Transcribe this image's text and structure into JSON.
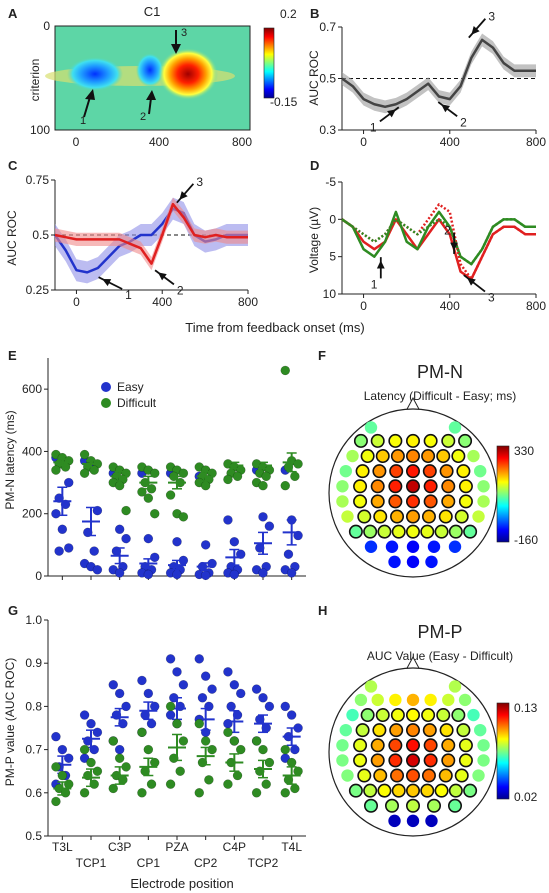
{
  "panel_letters": {
    "a": "A",
    "b": "B",
    "c": "C",
    "d": "D",
    "e": "E",
    "f": "F",
    "g": "G",
    "h": "H"
  },
  "colors": {
    "blue": "#2233cc",
    "red": "#e02020",
    "green": "#2e8b22",
    "grey": "#444444",
    "band_grey": "#999999",
    "band_blue": "#8f8fe8",
    "band_red": "#f08a8a"
  },
  "shared_xlabel": "Time from feedback onset (ms)",
  "chart_data": [
    {
      "id": "A",
      "type": "heatmap",
      "title": "C1",
      "ylabel": "criterion",
      "x_ticks": [
        "0",
        "400",
        "800"
      ],
      "y_ticks": [
        "0",
        "100"
      ],
      "colorbar": {
        "max_label": "0.2",
        "min_label": "-0.15",
        "range": [
          -0.15,
          0.2
        ]
      },
      "arrows": [
        "1",
        "2",
        "3"
      ]
    },
    {
      "id": "B",
      "type": "line",
      "ylabel": "AUC ROC",
      "ylim": [
        0.3,
        0.7
      ],
      "xlim": [
        -100,
        800
      ],
      "y_ticks": [
        "0.7",
        "0.5",
        "0.3"
      ],
      "x_ticks": [
        "0",
        "400",
        "800"
      ],
      "x": [
        -100,
        -50,
        0,
        50,
        100,
        150,
        200,
        250,
        300,
        350,
        400,
        450,
        500,
        550,
        600,
        650,
        700,
        750,
        800
      ],
      "series": [
        {
          "values": [
            0.5,
            0.47,
            0.42,
            0.4,
            0.39,
            0.4,
            0.42,
            0.45,
            0.48,
            0.43,
            0.42,
            0.47,
            0.58,
            0.65,
            0.62,
            0.56,
            0.53,
            0.53,
            0.53
          ],
          "sem": 0.025
        }
      ],
      "reference": 0.5,
      "arrows": [
        "1",
        "2",
        "3"
      ]
    },
    {
      "id": "C",
      "type": "line",
      "ylabel": "AUC ROC",
      "ylim": [
        0.25,
        0.75
      ],
      "xlim": [
        -100,
        800
      ],
      "y_ticks": [
        "0.75",
        "0.5",
        "0.25"
      ],
      "x_ticks": [
        "0",
        "400",
        "800"
      ],
      "x": [
        -100,
        -50,
        0,
        50,
        100,
        150,
        200,
        250,
        300,
        350,
        400,
        450,
        500,
        550,
        600,
        650,
        700,
        750,
        800
      ],
      "series": [
        {
          "color_key": "blue",
          "values": [
            0.5,
            0.43,
            0.34,
            0.33,
            0.35,
            0.4,
            0.45,
            0.47,
            0.5,
            0.5,
            0.55,
            0.62,
            0.6,
            0.5,
            0.47,
            0.48,
            0.5,
            0.5,
            0.5
          ],
          "sem": 0.05
        },
        {
          "color_key": "red",
          "values": [
            0.5,
            0.49,
            0.48,
            0.48,
            0.48,
            0.48,
            0.48,
            0.46,
            0.44,
            0.37,
            0.5,
            0.64,
            0.58,
            0.5,
            0.49,
            0.5,
            0.49,
            0.49,
            0.49
          ],
          "sem": 0.03
        }
      ],
      "reference": 0.5,
      "arrows": [
        "1",
        "2",
        "3"
      ]
    },
    {
      "id": "D",
      "type": "line",
      "ylabel": "Voltage (µV)",
      "ylim": [
        -5,
        10
      ],
      "y_inverted": true,
      "xlim": [
        -100,
        800
      ],
      "y_ticks": [
        "-5",
        "0",
        "5",
        "10"
      ],
      "x_ticks": [
        "0",
        "400",
        "800"
      ],
      "x": [
        -100,
        -50,
        0,
        50,
        100,
        150,
        200,
        250,
        300,
        350,
        400,
        450,
        500,
        550,
        600,
        650,
        700,
        750,
        800
      ],
      "series": [
        {
          "color_key": "red",
          "style": "solid",
          "values": [
            0,
            1,
            3,
            4,
            3,
            0,
            2,
            4,
            2,
            0,
            2,
            7,
            8,
            5,
            2,
            1,
            1,
            2,
            2
          ]
        },
        {
          "color_key": "green",
          "style": "solid",
          "values": [
            0,
            1,
            4,
            5,
            3,
            -1,
            3,
            4,
            1,
            -1,
            1,
            5,
            6,
            4,
            1,
            0,
            0,
            1,
            1
          ]
        },
        {
          "color_key": "red",
          "style": "dotted",
          "values": [
            0,
            1,
            2,
            3,
            2,
            0,
            1,
            2,
            0,
            -2,
            -1,
            6,
            8,
            5,
            2,
            1,
            1,
            2,
            2
          ]
        },
        {
          "color_key": "green",
          "style": "dotted",
          "values": [
            0,
            1,
            2,
            3,
            2,
            0,
            1,
            2,
            1,
            0,
            1,
            5,
            6,
            4,
            1,
            0,
            0,
            1,
            1
          ]
        }
      ],
      "arrows": [
        "1",
        "2",
        "3"
      ]
    },
    {
      "id": "E",
      "type": "scatter",
      "ylabel": "PM-N latency (ms)",
      "ylim": [
        0,
        700
      ],
      "y_ticks": [
        "0",
        "200",
        "400",
        "600"
      ],
      "categories": [
        "T3L",
        "TCP1",
        "C3P",
        "CP1",
        "PZA",
        "CP2",
        "C4P",
        "TCP2",
        "T4L"
      ],
      "series": [
        {
          "name": "Easy",
          "color_key": "blue",
          "points": [
            [
              380,
              360,
              300,
              250,
              230,
              200,
              150,
              90,
              80
            ],
            [
              370,
              350,
              210,
              140,
              80,
              40,
              30,
              20
            ],
            [
              330,
              150,
              120,
              80,
              30,
              20,
              10
            ],
            [
              330,
              120,
              60,
              30,
              20,
              10,
              5
            ],
            [
              330,
              110,
              50,
              30,
              20,
              10,
              5
            ],
            [
              320,
              100,
              40,
              30,
              10,
              5,
              2
            ],
            [
              180,
              110,
              70,
              30,
              20,
              10,
              5
            ],
            [
              340,
              190,
              160,
              90,
              30,
              20,
              10
            ],
            [
              340,
              180,
              130,
              70,
              30,
              20,
              10
            ]
          ],
          "mean": [
            240,
            175,
            65,
            40,
            35,
            30,
            60,
            105,
            140
          ],
          "sem": [
            45,
            45,
            25,
            15,
            15,
            12,
            25,
            35,
            40
          ]
        },
        {
          "name": "Difficult",
          "color_key": "green",
          "points": [
            [
              390,
              380,
              370,
              360,
              350,
              340
            ],
            [
              390,
              370,
              360,
              350,
              340,
              330
            ],
            [
              350,
              340,
              330,
              320,
              310,
              300,
              290,
              210
            ],
            [
              350,
              340,
              330,
              300,
              280,
              270,
              250,
              200
            ],
            [
              350,
              340,
              330,
              320,
              300,
              260,
              200,
              190
            ],
            [
              350,
              340,
              330,
              320,
              310,
              300,
              290
            ],
            [
              360,
              350,
              340,
              330,
              320,
              310
            ],
            [
              360,
              350,
              340,
              330,
              320,
              300,
              290
            ],
            [
              660,
              370,
              360,
              350,
              320,
              290
            ]
          ],
          "mean": [
            365,
            360,
            320,
            300,
            300,
            320,
            355,
            355,
            365
          ],
          "sem": [
            10,
            10,
            15,
            20,
            20,
            15,
            10,
            10,
            30
          ]
        }
      ]
    },
    {
      "id": "F",
      "type": "heatmap",
      "title": "PM-N",
      "subtitle": "Latency (Difficult - Easy; ms)",
      "colorbar": {
        "max_label": "330",
        "min_label": "-160",
        "range": [
          -160,
          330
        ]
      }
    },
    {
      "id": "G",
      "type": "scatter",
      "ylabel": "PM-P value (AUC ROC)",
      "xlabel": "Electrode position",
      "ylim": [
        0.5,
        1.0
      ],
      "y_ticks": [
        "0.5",
        "0.6",
        "0.7",
        "0.8",
        "0.9",
        "1.0"
      ],
      "categories": [
        "T3L",
        "TCP1",
        "C3P",
        "CP1",
        "PZA",
        "CP2",
        "C4P",
        "TCP2",
        "T4L"
      ],
      "series": [
        {
          "name": "Easy",
          "color_key": "blue",
          "points": [
            [
              0.73,
              0.7,
              0.68,
              0.66,
              0.64,
              0.62
            ],
            [
              0.78,
              0.76,
              0.74,
              0.72,
              0.7,
              0.68
            ],
            [
              0.85,
              0.83,
              0.8,
              0.78,
              0.76,
              0.72,
              0.7
            ],
            [
              0.86,
              0.83,
              0.8,
              0.78,
              0.76,
              0.74
            ],
            [
              0.91,
              0.88,
              0.85,
              0.82,
              0.8,
              0.78,
              0.76
            ],
            [
              0.91,
              0.87,
              0.84,
              0.82,
              0.8,
              0.77,
              0.74
            ],
            [
              0.88,
              0.85,
              0.83,
              0.8,
              0.78,
              0.76,
              0.72
            ],
            [
              0.84,
              0.82,
              0.8,
              0.77,
              0.75,
              0.72
            ],
            [
              0.8,
              0.78,
              0.75,
              0.73,
              0.7,
              0.68
            ]
          ],
          "mean": [
            0.665,
            0.725,
            0.775,
            0.79,
            0.795,
            0.77,
            0.765,
            0.76,
            0.73
          ],
          "sem": [
            0.02,
            0.02,
            0.02,
            0.02,
            0.025,
            0.025,
            0.025,
            0.02,
            0.02
          ]
        },
        {
          "name": "Difficult",
          "color_key": "green",
          "points": [
            [
              0.66,
              0.64,
              0.62,
              0.61,
              0.6,
              0.58
            ],
            [
              0.7,
              0.67,
              0.65,
              0.64,
              0.62,
              0.6
            ],
            [
              0.72,
              0.68,
              0.66,
              0.64,
              0.63,
              0.61
            ],
            [
              0.74,
              0.7,
              0.67,
              0.65,
              0.62,
              0.6
            ],
            [
              0.8,
              0.76,
              0.72,
              0.68,
              0.65,
              0.62
            ],
            [
              0.76,
              0.72,
              0.7,
              0.67,
              0.63,
              0.6
            ],
            [
              0.74,
              0.72,
              0.7,
              0.67,
              0.64,
              0.62
            ],
            [
              0.72,
              0.7,
              0.67,
              0.65,
              0.62,
              0.6
            ],
            [
              0.7,
              0.67,
              0.65,
              0.63,
              0.61,
              0.6
            ]
          ],
          "mean": [
            0.61,
            0.635,
            0.64,
            0.66,
            0.705,
            0.685,
            0.67,
            0.655,
            0.64
          ],
          "sem": [
            0.015,
            0.02,
            0.02,
            0.02,
            0.03,
            0.02,
            0.02,
            0.02,
            0.02
          ]
        }
      ]
    },
    {
      "id": "H",
      "type": "heatmap",
      "title": "PM-P",
      "subtitle": "AUC Value (Easy - Difficult)",
      "colorbar": {
        "max_label": "0.13",
        "min_label": "0.02",
        "range": [
          0.02,
          0.13
        ]
      }
    }
  ]
}
